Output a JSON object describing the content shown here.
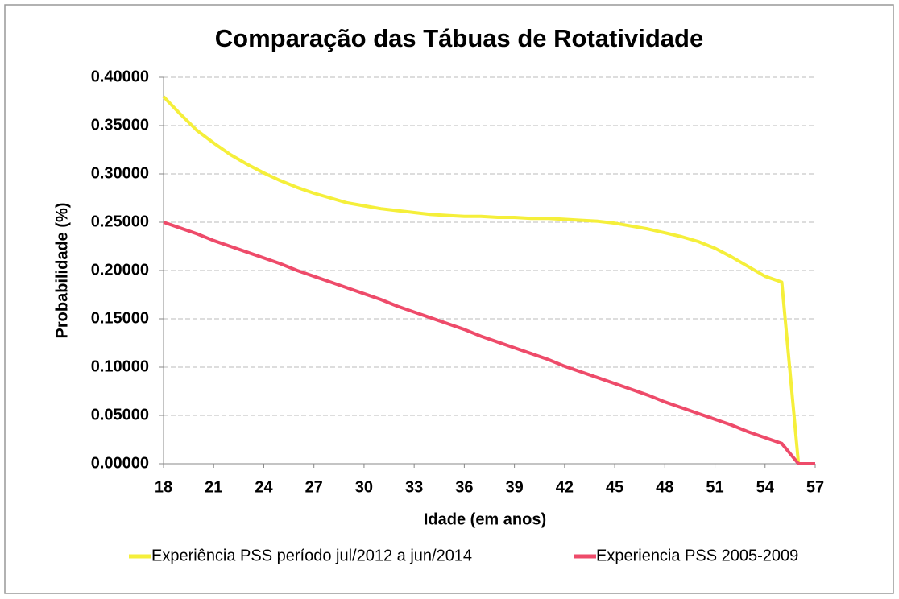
{
  "chart_data": {
    "type": "line",
    "title": "Comparação das Tábuas de Rotatividade",
    "xlabel": "Idade (em anos)",
    "ylabel": "Probabilidade  (%)",
    "x": [
      18,
      19,
      20,
      21,
      22,
      23,
      24,
      25,
      26,
      27,
      28,
      29,
      30,
      31,
      32,
      33,
      34,
      35,
      36,
      37,
      38,
      39,
      40,
      41,
      42,
      43,
      44,
      45,
      46,
      47,
      48,
      49,
      50,
      51,
      52,
      53,
      54,
      55,
      56,
      57
    ],
    "series": [
      {
        "name": "Experiência PSS período jul/2012 a jun/2014",
        "color": "#f5ef3a",
        "values": [
          0.38,
          0.362,
          0.345,
          0.332,
          0.32,
          0.31,
          0.301,
          0.293,
          0.286,
          0.28,
          0.275,
          0.27,
          0.267,
          0.264,
          0.262,
          0.26,
          0.258,
          0.257,
          0.256,
          0.256,
          0.255,
          0.255,
          0.254,
          0.254,
          0.253,
          0.252,
          0.251,
          0.249,
          0.246,
          0.243,
          0.239,
          0.235,
          0.23,
          0.223,
          0.214,
          0.204,
          0.194,
          0.188,
          0,
          null
        ]
      },
      {
        "name": "Experiencia PSS 2005-2009",
        "color": "#ee4b6a",
        "values": [
          0.25,
          0.244,
          0.238,
          0.231,
          0.225,
          0.219,
          0.213,
          0.207,
          0.2,
          0.194,
          0.188,
          0.182,
          0.176,
          0.17,
          0.163,
          0.157,
          0.151,
          0.145,
          0.139,
          0.132,
          0.126,
          0.12,
          0.114,
          0.108,
          0.101,
          0.095,
          0.089,
          0.083,
          0.077,
          0.071,
          0.064,
          0.058,
          0.052,
          0.046,
          0.04,
          0.033,
          0.027,
          0.021,
          0,
          0
        ]
      }
    ],
    "xlim": [
      18,
      57
    ],
    "xticks": [
      18,
      21,
      24,
      27,
      30,
      33,
      36,
      39,
      42,
      45,
      48,
      51,
      54,
      57
    ],
    "ylim": [
      0,
      0.4
    ],
    "yticks": [
      {
        "value": 0,
        "label": "0.00000"
      },
      {
        "value": 0.05,
        "label": "0.05000"
      },
      {
        "value": 0.1,
        "label": "0.10000"
      },
      {
        "value": 0.15,
        "label": "0.15000"
      },
      {
        "value": 0.2,
        "label": "0.20000"
      },
      {
        "value": 0.25,
        "label": "0.25000"
      },
      {
        "value": 0.3,
        "label": "0.30000"
      },
      {
        "value": 0.35,
        "label": "0.35000"
      },
      {
        "value": 0.4,
        "label": "0.40000"
      }
    ],
    "grid": true,
    "legend": "bottom"
  }
}
